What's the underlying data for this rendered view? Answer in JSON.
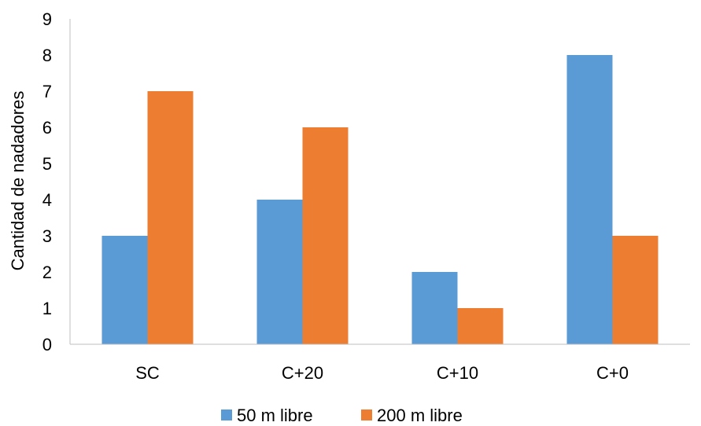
{
  "chart_data": {
    "type": "bar",
    "title": "",
    "xlabel": "",
    "ylabel": "Cantidad de nadadores",
    "categories": [
      "SC",
      "C+20",
      "C+10",
      "C+0"
    ],
    "series": [
      {
        "name": "50 m libre",
        "values": [
          3,
          4,
          2,
          8
        ],
        "color": "#5B9BD5"
      },
      {
        "name": "200 m libre",
        "values": [
          7,
          6,
          1,
          3
        ],
        "color": "#ED7D31"
      }
    ],
    "ylim": [
      0,
      9
    ],
    "yticks": [
      "0",
      "1",
      "2",
      "3",
      "4",
      "5",
      "6",
      "7",
      "8",
      "9"
    ],
    "grid": false,
    "legend_position": "bottom"
  }
}
